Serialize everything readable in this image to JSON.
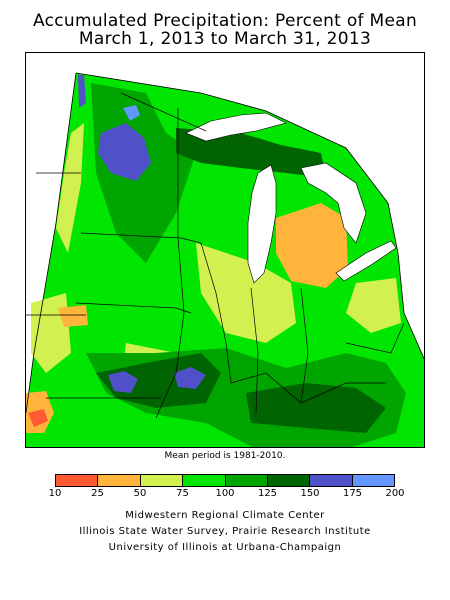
{
  "title": {
    "line1": "Accumulated Precipitation: Percent of Mean",
    "line2": "March 1, 2013 to March 31, 2013"
  },
  "map": {
    "note": "Mean period is 1981-2010."
  },
  "legend": {
    "ticks": [
      "10",
      "25",
      "50",
      "75",
      "100",
      "125",
      "150",
      "175",
      "200"
    ],
    "colors": [
      "#ff5a32",
      "#ffb43c",
      "#d2f050",
      "#00e600",
      "#00a500",
      "#006400",
      "#5050c8",
      "#6496ff"
    ]
  },
  "credits": {
    "line1": "Midwestern Regional Climate Center",
    "line2": "Illinois State Water Survey, Prairie Research Institute",
    "line3": "University of Illinois at Urbana-Champaign"
  }
}
